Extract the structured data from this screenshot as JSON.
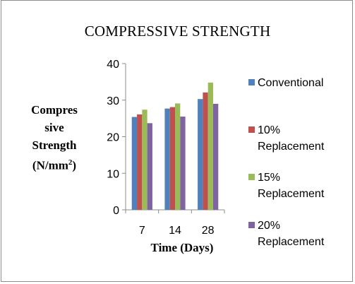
{
  "chart_data": {
    "type": "bar",
    "title": "COMPRESSIVE STRENGTH",
    "ylabel_lines": [
      "Compres",
      "sive",
      "Strength",
      "(N/mm"
    ],
    "ylabel_sup": "2",
    "ylabel_tail": ")",
    "xlabel": "Time (Days)",
    "categories": [
      "7",
      "14",
      "28"
    ],
    "ylim": [
      0,
      40
    ],
    "yticks": [
      "0",
      "10",
      "20",
      "30",
      "40"
    ],
    "grid": false,
    "legend_position": "right",
    "series": [
      {
        "name": "Conventional",
        "name_lines": [
          "Conventional"
        ],
        "color": "#4f81bd",
        "values": [
          25.4,
          27.7,
          30.3
        ]
      },
      {
        "name": "10% Replacement",
        "name_lines": [
          "10%",
          "Replacement"
        ],
        "color": "#c0504d",
        "values": [
          26.1,
          28.1,
          32.1
        ]
      },
      {
        "name": "15% Replacement",
        "name_lines": [
          "15%",
          "Replacement"
        ],
        "color": "#9bbb59",
        "values": [
          27.4,
          29.1,
          34.8
        ]
      },
      {
        "name": "20% Replacement",
        "name_lines": [
          "20%",
          "Replacement"
        ],
        "color": "#8064a2",
        "values": [
          23.7,
          25.5,
          29.0
        ]
      }
    ]
  }
}
